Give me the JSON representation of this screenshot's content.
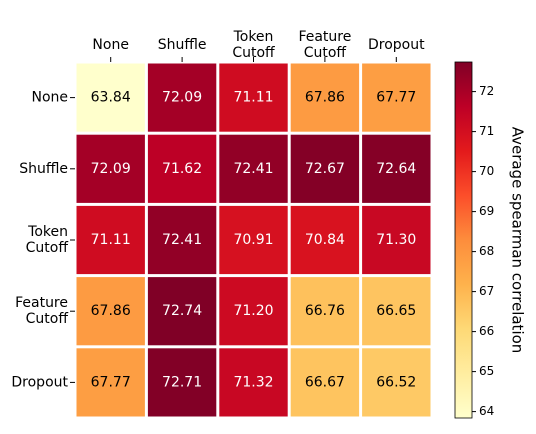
{
  "chart_data": {
    "type": "heatmap",
    "x_categories": [
      "None",
      "Shuffle",
      "Token\nCutoff",
      "Feature\nCutoff",
      "Dropout"
    ],
    "y_categories": [
      "None",
      "Shuffle",
      "Token\nCutoff",
      "Feature\nCutoff",
      "Dropout"
    ],
    "values": [
      [
        63.84,
        72.09,
        71.11,
        67.86,
        67.77
      ],
      [
        72.09,
        71.62,
        72.41,
        72.67,
        72.64
      ],
      [
        71.11,
        72.41,
        70.91,
        70.84,
        71.3
      ],
      [
        67.86,
        72.74,
        71.2,
        66.76,
        66.65
      ],
      [
        67.77,
        72.71,
        71.32,
        66.67,
        66.52
      ]
    ],
    "value_labels": [
      [
        "63.84",
        "72.09",
        "71.11",
        "67.86",
        "67.77"
      ],
      [
        "72.09",
        "71.62",
        "72.41",
        "72.67",
        "72.64"
      ],
      [
        "71.11",
        "72.41",
        "70.91",
        "70.84",
        "71.30"
      ],
      [
        "67.86",
        "72.74",
        "71.20",
        "66.76",
        "66.65"
      ],
      [
        "67.77",
        "72.71",
        "71.32",
        "66.67",
        "66.52"
      ]
    ],
    "colormap": [
      "#ffffcc",
      "#ffeda0",
      "#fed976",
      "#feb24c",
      "#fd8d3c",
      "#fc4e2a",
      "#e31a1c",
      "#bd0026",
      "#800026"
    ],
    "clim": [
      63.84,
      72.74
    ],
    "cticks": [
      64,
      65,
      66,
      67,
      68,
      69,
      70,
      71,
      72
    ],
    "colorbar_label": "Average spearman correlation"
  }
}
